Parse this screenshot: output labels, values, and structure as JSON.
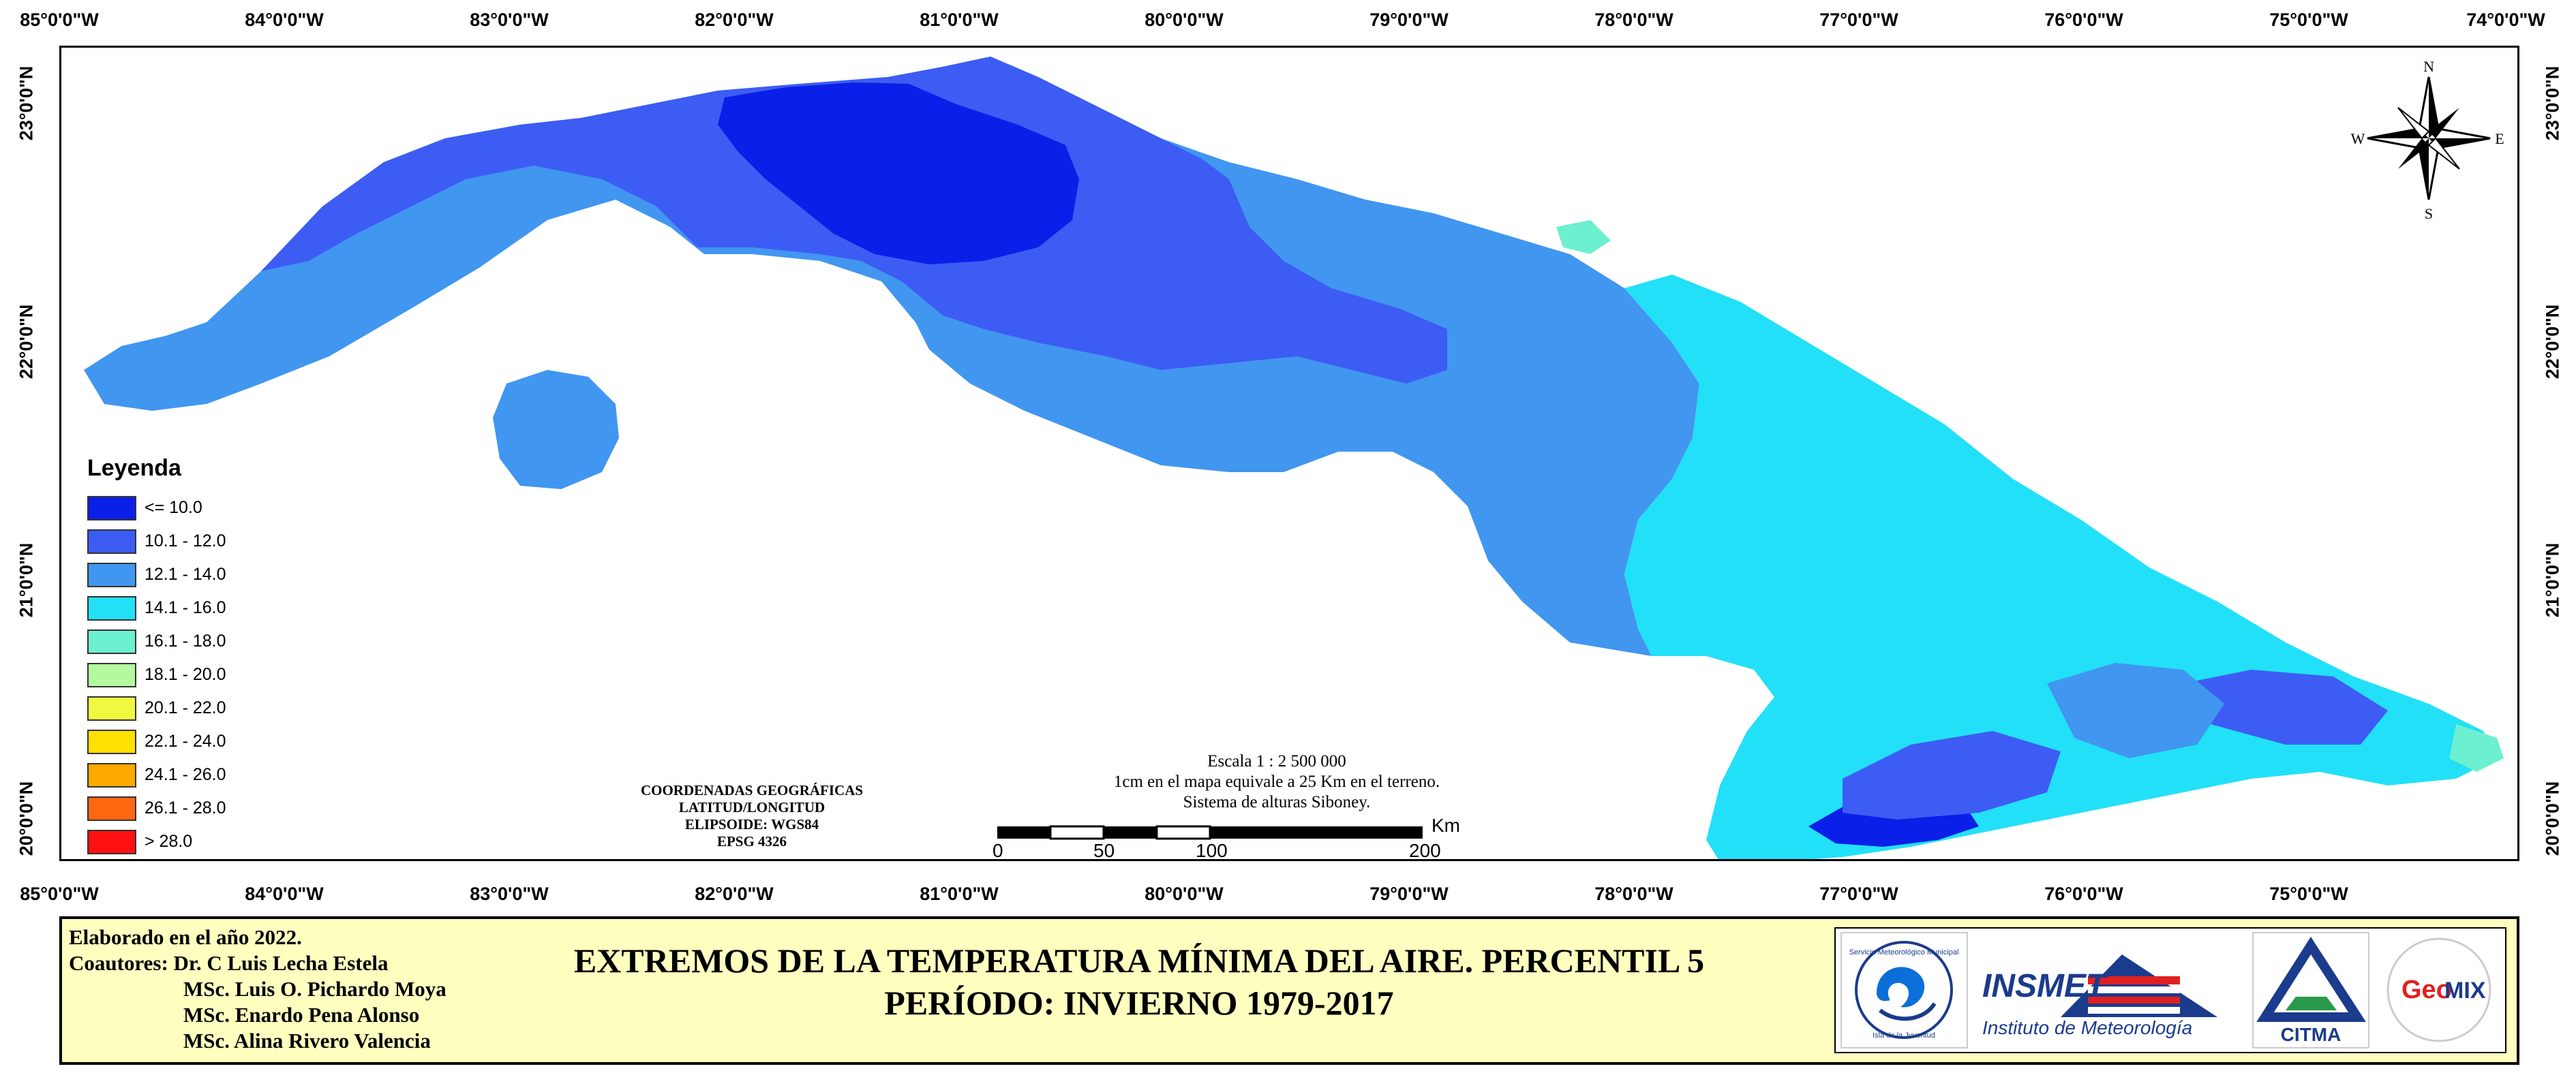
{
  "map": {
    "top_ticks": [
      "85°0'0\"W",
      "84°0'0\"W",
      "83°0'0\"W",
      "82°0'0\"W",
      "81°0'0\"W",
      "80°0'0\"W",
      "79°0'0\"W",
      "78°0'0\"W",
      "77°0'0\"W",
      "76°0'0\"W",
      "75°0'0\"W",
      "74°0'0\"W"
    ],
    "bottom_ticks": [
      "85°0'0\"W",
      "84°0'0\"W",
      "83°0'0\"W",
      "82°0'0\"W",
      "81°0'0\"W",
      "80°0'0\"W",
      "79°0'0\"W",
      "78°0'0\"W",
      "77°0'0\"W",
      "76°0'0\"W",
      "75°0'0\"W"
    ],
    "left_ticks": [
      "23°0'0\"N",
      "22°0'0\"N",
      "21°0'0\"N",
      "20°0'0\"N"
    ],
    "right_ticks": [
      "23°0'0\"N",
      "22°0'0\"N",
      "21°0'0\"N",
      "20°0'0\"N"
    ],
    "compass": {
      "n": "N",
      "s": "S",
      "e": "E",
      "w": "W"
    }
  },
  "legend": {
    "title": "Leyenda",
    "items": [
      {
        "label": "<= 10.0",
        "color": "#0a1fe8"
      },
      {
        "label": "10.1 - 12.0",
        "color": "#3d5cf4"
      },
      {
        "label": "12.1 - 14.0",
        "color": "#4196f0"
      },
      {
        "label": "14.1 - 16.0",
        "color": "#22e0f8"
      },
      {
        "label": "16.1 - 18.0",
        "color": "#6cf0d0"
      },
      {
        "label": "18.1 - 20.0",
        "color": "#b4f8a0"
      },
      {
        "label": "20.1 - 22.0",
        "color": "#f0f840"
      },
      {
        "label": "22.1 - 24.0",
        "color": "#ffe000"
      },
      {
        "label": "24.1 - 26.0",
        "color": "#ffa800"
      },
      {
        "label": "26.1 - 28.0",
        "color": "#ff6810"
      },
      {
        "label": "> 28.0",
        "color": "#ff1010"
      }
    ]
  },
  "coords_block": {
    "lines": [
      "COORDENADAS GEOGRÁFICAS",
      "LATITUD/LONGITUD",
      "ELIPSOIDE: WGS84",
      "EPSG 4326"
    ]
  },
  "scale_block": {
    "lines": [
      "Escala 1 : 2 500 000",
      "1cm en el mapa equivale a 25 Km en el terreno.",
      "Sistema de alturas Siboney."
    ],
    "unit": "Km",
    "ticks": [
      "0",
      "50",
      "100",
      "200"
    ]
  },
  "footer": {
    "credits": [
      "Elaborado en el año 2022.",
      "Coautores: Dr. C Luis Lecha Estela",
      "MSc. Luis O. Pichardo Moya",
      "MSc. Enardo Pena Alonso",
      "MSc. Alina Rivero Valencia"
    ],
    "title_line1": "EXTREMOS DE LA TEMPERATURA MÍNIMA DEL AIRE. PERCENTIL 5",
    "title_line2": "PERÍODO: INVIERNO 1979-2017"
  },
  "logos": {
    "insmet_name": "INSMET",
    "insmet_sub": "Instituto de Meteorología",
    "citma": "CITMA",
    "geomix_1": "Geo",
    "geomix_2": "MIX",
    "smm_top": "Servicio Meteorológico Municipal",
    "smm_bottom": "Isla de la Juventud"
  }
}
